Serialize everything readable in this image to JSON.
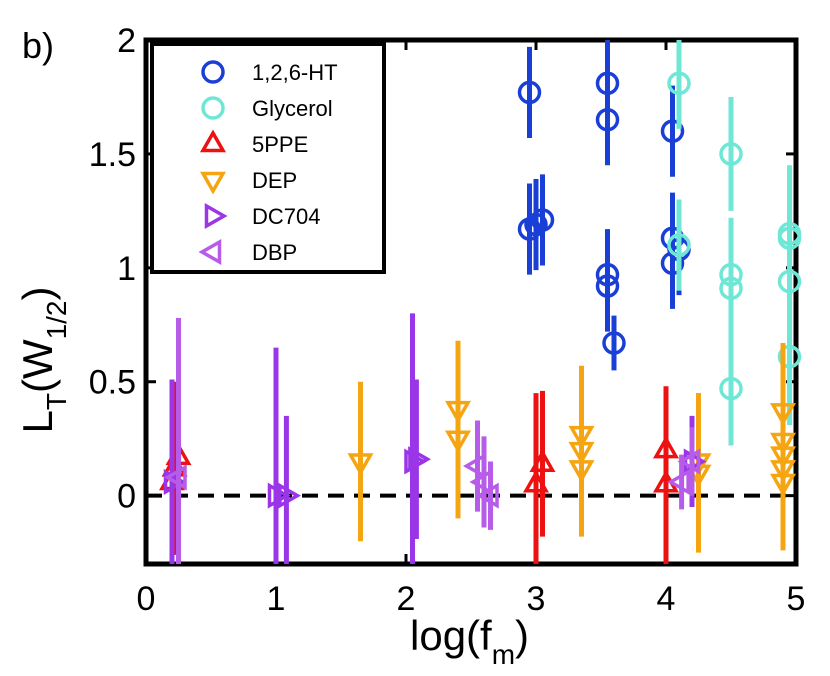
{
  "chart_data": {
    "type": "scatter",
    "panel_label": "b)",
    "xlabel": "log(f",
    "xlabel_sub": "m",
    "xlabel_close": ")",
    "ylabel": "L",
    "ylabel_sub1": "T",
    "ylabel_mid": "(W",
    "ylabel_sub2": "1/2",
    "ylabel_close": ")",
    "xlim": [
      0,
      5
    ],
    "ylim": [
      -0.3,
      2
    ],
    "xticks": [
      0,
      1,
      2,
      3,
      4,
      5
    ],
    "xtick_labels": [
      "0",
      "1",
      "2",
      "3",
      "4",
      "5"
    ],
    "yticks": [
      0,
      0.5,
      1,
      1.5,
      2
    ],
    "ytick_labels": [
      "0",
      "0.5",
      "1",
      "1.5",
      "2"
    ],
    "reference_line": {
      "y": 0,
      "style": "dashed"
    },
    "legend_placement": "top-left",
    "series": [
      {
        "name": "1,2,6-HT",
        "marker": "circle",
        "color": "#1a3fd6",
        "points": [
          {
            "x": 2.95,
            "y": 1.77,
            "err": 0.2
          },
          {
            "x": 3.55,
            "y": 1.81,
            "err": 0.2
          },
          {
            "x": 3.55,
            "y": 1.65,
            "err": 0.2
          },
          {
            "x": 4.05,
            "y": 1.6,
            "err": 0.2
          },
          {
            "x": 2.95,
            "y": 1.17,
            "err": 0.2
          },
          {
            "x": 3.0,
            "y": 1.19,
            "err": 0.2
          },
          {
            "x": 3.05,
            "y": 1.21,
            "err": 0.2
          },
          {
            "x": 3.55,
            "y": 0.97,
            "err": 0.2
          },
          {
            "x": 3.55,
            "y": 0.92,
            "err": 0.2
          },
          {
            "x": 3.6,
            "y": 0.67,
            "err": 0.12
          },
          {
            "x": 4.05,
            "y": 1.13,
            "err": 0.2
          },
          {
            "x": 4.05,
            "y": 1.02,
            "err": 0.2
          },
          {
            "x": 4.1,
            "y": 1.08,
            "err": 0.2
          }
        ]
      },
      {
        "name": "Glycerol",
        "marker": "circle",
        "color": "#6fe7d6",
        "points": [
          {
            "x": 4.1,
            "y": 1.81,
            "err": 0.2
          },
          {
            "x": 4.5,
            "y": 1.5,
            "err": 0.25
          },
          {
            "x": 4.1,
            "y": 1.1,
            "err": 0.2
          },
          {
            "x": 4.5,
            "y": 0.97,
            "err": 0.25
          },
          {
            "x": 4.5,
            "y": 0.91,
            "err": 0.25
          },
          {
            "x": 4.5,
            "y": 0.47,
            "err": 0.25
          },
          {
            "x": 4.95,
            "y": 1.15,
            "err": 0.3
          },
          {
            "x": 4.95,
            "y": 1.13,
            "err": 0.3
          },
          {
            "x": 4.95,
            "y": 0.94,
            "err": 0.3
          },
          {
            "x": 4.95,
            "y": 0.61,
            "err": 0.3
          }
        ]
      },
      {
        "name": "5PPE",
        "marker": "triangle-up",
        "color": "#ee1111",
        "points": [
          {
            "x": 0.2,
            "y": 0.06,
            "err": 0.38
          },
          {
            "x": 0.22,
            "y": 0.12,
            "err": 0.38
          },
          {
            "x": 0.25,
            "y": 0.17,
            "err": 0.3
          },
          {
            "x": 3.0,
            "y": 0.05,
            "err": 0.4
          },
          {
            "x": 3.05,
            "y": 0.14,
            "err": 0.32
          },
          {
            "x": 4.0,
            "y": 0.05,
            "err": 0.4
          },
          {
            "x": 4.0,
            "y": 0.2,
            "err": 0.28
          }
        ]
      },
      {
        "name": "DEP",
        "marker": "triangle-down",
        "color": "#f5a511",
        "points": [
          {
            "x": 1.65,
            "y": 0.15,
            "err": 0.35
          },
          {
            "x": 2.4,
            "y": 0.38,
            "err": 0.3
          },
          {
            "x": 2.4,
            "y": 0.25,
            "err": 0.35
          },
          {
            "x": 3.35,
            "y": 0.27,
            "err": 0.3
          },
          {
            "x": 3.35,
            "y": 0.2,
            "err": 0.3
          },
          {
            "x": 3.35,
            "y": 0.12,
            "err": 0.3
          },
          {
            "x": 4.25,
            "y": 0.15,
            "err": 0.3
          },
          {
            "x": 4.25,
            "y": 0.1,
            "err": 0.35
          },
          {
            "x": 4.9,
            "y": 0.37,
            "err": 0.3
          },
          {
            "x": 4.9,
            "y": 0.24,
            "err": 0.3
          },
          {
            "x": 4.9,
            "y": 0.18,
            "err": 0.3
          },
          {
            "x": 4.9,
            "y": 0.12,
            "err": 0.3
          },
          {
            "x": 4.9,
            "y": 0.06,
            "err": 0.3
          }
        ]
      },
      {
        "name": "DC704",
        "marker": "triangle-right",
        "color": "#9b36e8",
        "points": [
          {
            "x": 0.2,
            "y": 0.06,
            "err": 0.45
          },
          {
            "x": 1.0,
            "y": 0.0,
            "err": 0.65
          },
          {
            "x": 1.08,
            "y": 0.0,
            "err": 0.35
          },
          {
            "x": 2.05,
            "y": 0.15,
            "err": 0.65
          },
          {
            "x": 2.08,
            "y": 0.16,
            "err": 0.35
          },
          {
            "x": 4.2,
            "y": 0.15,
            "err": 0.2
          }
        ]
      },
      {
        "name": "DBP",
        "marker": "triangle-left",
        "color": "#b65ce8",
        "points": [
          {
            "x": 0.25,
            "y": 0.08,
            "err": 0.7
          },
          {
            "x": 2.55,
            "y": 0.13,
            "err": 0.2
          },
          {
            "x": 2.6,
            "y": 0.06,
            "err": 0.2
          },
          {
            "x": 2.65,
            "y": 0.0,
            "err": 0.15
          },
          {
            "x": 4.12,
            "y": 0.06,
            "err": 0.12
          },
          {
            "x": 4.2,
            "y": 0.15,
            "err": 0.15
          }
        ]
      }
    ]
  }
}
